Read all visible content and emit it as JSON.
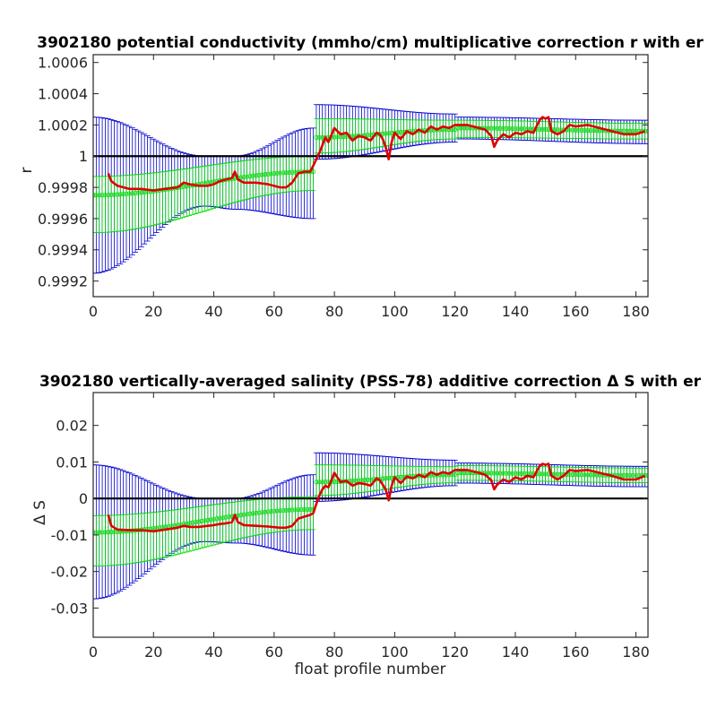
{
  "chart_data": [
    {
      "type": "line",
      "title": "3902180 potential conductivity (mmho/cm) multiplicative correction r with er",
      "xlabel": "",
      "ylabel": "r",
      "xlim": [
        0,
        184
      ],
      "ylim": [
        0.9991,
        1.00065
      ],
      "xticks": [
        0,
        20,
        40,
        60,
        80,
        100,
        120,
        140,
        160,
        180
      ],
      "xtick_labels": [
        "0",
        "20",
        "40",
        "60",
        "80",
        "100",
        "120",
        "140",
        "160",
        "180"
      ],
      "yticks": [
        0.9992,
        0.9994,
        0.9996,
        0.9998,
        1.0,
        1.0002,
        1.0004,
        1.0006
      ],
      "ytick_labels": [
        "0.9992",
        "0.9994",
        "0.9996",
        "0.9998",
        "1",
        "1.0002",
        "1.0004",
        "1.0006"
      ],
      "reference_line": 1.0,
      "series": [
        {
          "role": "fit-with-error",
          "color": "#0000cc",
          "segments": [
            {
              "x_range": [
                0,
                73
              ],
              "center": [
                [
                  0,
                  0.99975
                ],
                [
                  37,
                  0.99998
                ],
                [
                  47,
                  0.99998
                ],
                [
                  73,
                  0.9999
                ]
              ],
              "upper": [
                [
                  0,
                  1.00025
                ],
                [
                  37,
                  1.0
                ],
                [
                  47,
                  1.0
                ],
                [
                  73,
                  1.00018
                ]
              ],
              "lower": [
                [
                  0,
                  0.99925
                ],
                [
                  37,
                  0.99968
                ],
                [
                  47,
                  0.99966
                ],
                [
                  73,
                  0.9996
                ]
              ]
            },
            {
              "x_range": [
                74,
                120
              ],
              "center": [
                [
                  74,
                  1.0001
                ],
                [
                  120,
                  1.00017
                ]
              ],
              "upper": [
                [
                  74,
                  1.00033
                ],
                [
                  120,
                  1.00027
                ]
              ],
              "lower": [
                [
                  74,
                  0.99998
                ],
                [
                  120,
                  1.00009
                ]
              ]
            },
            {
              "x_range": [
                121,
                184
              ],
              "center": [
                [
                  121,
                  1.00018
                ],
                [
                  184,
                  1.00015
                ]
              ],
              "upper": [
                [
                  121,
                  1.00025
                ],
                [
                  184,
                  1.00023
                ]
              ],
              "lower": [
                [
                  121,
                  1.00011
                ],
                [
                  184,
                  1.00008
                ]
              ]
            }
          ]
        },
        {
          "role": "green-error-band",
          "color": "#00dd00",
          "segments": [
            {
              "x_range": [
                0,
                73
              ],
              "center": [
                [
                  0,
                  0.99975
                ],
                [
                  73,
                  0.9999
                ]
              ],
              "upper": [
                [
                  0,
                  0.99987
                ],
                [
                  73,
                  1.0
                ]
              ],
              "lower": [
                [
                  0,
                  0.99951
                ],
                [
                  73,
                  0.99978
                ]
              ]
            },
            {
              "x_range": [
                74,
                120
              ],
              "center": [
                [
                  74,
                  1.00012
                ],
                [
                  120,
                  1.00017
                ]
              ],
              "upper": [
                [
                  74,
                  1.00024
                ],
                [
                  120,
                  1.00023
                ]
              ],
              "lower": [
                [
                  74,
                  1.00002
                ],
                [
                  120,
                  1.00011
                ]
              ]
            },
            {
              "x_range": [
                121,
                184
              ],
              "center": [
                [
                  121,
                  1.00018
                ],
                [
                  184,
                  1.00016
                ]
              ],
              "upper": [
                [
                  121,
                  1.00023
                ],
                [
                  184,
                  1.00021
                ]
              ],
              "lower": [
                [
                  121,
                  1.00012
                ],
                [
                  184,
                  1.00011
                ]
              ]
            }
          ]
        },
        {
          "role": "profile-correction",
          "color": "#dd0000",
          "x": [
            5,
            6,
            8,
            12,
            16,
            20,
            24,
            28,
            30,
            32,
            35,
            38,
            40,
            42,
            44,
            46,
            47,
            48,
            50,
            54,
            58,
            62,
            64,
            66,
            68,
            70,
            72,
            73,
            74,
            75,
            76,
            77,
            78,
            80,
            82,
            84,
            86,
            88,
            90,
            92,
            94,
            95,
            96,
            97,
            98,
            99,
            100,
            102,
            104,
            106,
            108,
            110,
            112,
            114,
            116,
            118,
            120,
            124,
            128,
            130,
            132,
            133,
            134,
            136,
            138,
            140,
            142,
            144,
            146,
            148,
            149,
            150,
            151,
            152,
            154,
            156,
            158,
            160,
            164,
            168,
            172,
            176,
            180,
            183
          ],
          "y": [
            0.99989,
            0.99984,
            0.99981,
            0.99979,
            0.99979,
            0.99978,
            0.99979,
            0.9998,
            0.99983,
            0.99982,
            0.99981,
            0.99981,
            0.99982,
            0.99984,
            0.99985,
            0.99986,
            0.9999,
            0.99985,
            0.99983,
            0.99983,
            0.99982,
            0.9998,
            0.9998,
            0.99983,
            0.99989,
            0.9999,
            0.9999,
            0.99994,
            0.99998,
            1.00002,
            1.00007,
            1.00012,
            1.00009,
            1.00018,
            1.00014,
            1.00015,
            1.0001,
            1.00013,
            1.00012,
            1.0001,
            1.00015,
            1.00014,
            1.00011,
            1.00006,
            0.99998,
            1.00009,
            1.00015,
            1.00011,
            1.00016,
            1.00014,
            1.00017,
            1.00015,
            1.00019,
            1.00017,
            1.00019,
            1.00018,
            1.0002,
            1.0002,
            1.00018,
            1.00017,
            1.00013,
            1.00006,
            1.0001,
            1.00014,
            1.00012,
            1.00015,
            1.00014,
            1.00016,
            1.00015,
            1.00023,
            1.00025,
            1.00024,
            1.00025,
            1.00016,
            1.00014,
            1.00016,
            1.0002,
            1.00019,
            1.0002,
            1.00018,
            1.00016,
            1.00014,
            1.00014,
            1.00016
          ]
        }
      ]
    },
    {
      "type": "line",
      "title": "3902180 vertically-averaged salinity (PSS-78) additive correction Δ S with er",
      "xlabel": "float profile number",
      "ylabel": "Δ S",
      "xlim": [
        0,
        184
      ],
      "ylim": [
        -0.038,
        0.029
      ],
      "xticks": [
        0,
        20,
        40,
        60,
        80,
        100,
        120,
        140,
        160,
        180
      ],
      "xtick_labels": [
        "0",
        "20",
        "40",
        "60",
        "80",
        "100",
        "120",
        "140",
        "160",
        "180"
      ],
      "yticks": [
        -0.03,
        -0.02,
        -0.01,
        0,
        0.01,
        0.02
      ],
      "ytick_labels": [
        "-0.03",
        "-0.02",
        "-0.01",
        "0",
        "0.01",
        "0.02"
      ],
      "reference_line": 0,
      "series": [
        {
          "role": "fit-with-error",
          "color": "#0000cc",
          "segments": [
            {
              "x_range": [
                0,
                73
              ],
              "center": [
                [
                  0,
                  -0.0093
                ],
                [
                  37,
                  -0.0005
                ],
                [
                  47,
                  -0.0005
                ],
                [
                  73,
                  -0.003
                ]
              ],
              "upper": [
                [
                  0,
                  0.0092
                ],
                [
                  37,
                  0.0
                ],
                [
                  47,
                  0.0
                ],
                [
                  73,
                  0.0065
                ]
              ],
              "lower": [
                [
                  0,
                  -0.0275
                ],
                [
                  37,
                  -0.0118
                ],
                [
                  47,
                  -0.0122
                ],
                [
                  73,
                  -0.0155
                ]
              ]
            },
            {
              "x_range": [
                74,
                120
              ],
              "center": [
                [
                  74,
                  0.0037
                ],
                [
                  120,
                  0.0065
                ]
              ],
              "upper": [
                [
                  74,
                  0.0125
                ],
                [
                  120,
                  0.0105
                ]
              ],
              "lower": [
                [
                  74,
                  -0.0008
                ],
                [
                  120,
                  0.0035
                ]
              ]
            },
            {
              "x_range": [
                121,
                184
              ],
              "center": [
                [
                  121,
                  0.007
                ],
                [
                  184,
                  0.006
                ]
              ],
              "upper": [
                [
                  121,
                  0.0097
                ],
                [
                  184,
                  0.0088
                ]
              ],
              "lower": [
                [
                  121,
                  0.0042
                ],
                [
                  184,
                  0.0032
                ]
              ]
            }
          ]
        },
        {
          "role": "green-error-band",
          "color": "#00dd00",
          "segments": [
            {
              "x_range": [
                0,
                73
              ],
              "center": [
                [
                  0,
                  -0.0093
                ],
                [
                  73,
                  -0.003
                ]
              ],
              "upper": [
                [
                  0,
                  -0.0047
                ],
                [
                  73,
                  0.0005
                ]
              ],
              "lower": [
                [
                  0,
                  -0.0185
                ],
                [
                  73,
                  -0.0085
                ]
              ]
            },
            {
              "x_range": [
                74,
                120
              ],
              "center": [
                [
                  74,
                  0.0045
                ],
                [
                  120,
                  0.0065
                ]
              ],
              "upper": [
                [
                  74,
                  0.0092
                ],
                [
                  120,
                  0.0087
                ]
              ],
              "lower": [
                [
                  74,
                  0.0008
                ],
                [
                  120,
                  0.0043
                ]
              ]
            },
            {
              "x_range": [
                121,
                184
              ],
              "center": [
                [
                  121,
                  0.007
                ],
                [
                  184,
                  0.0063
                ]
              ],
              "upper": [
                [
                  121,
                  0.009
                ],
                [
                  184,
                  0.0083
                ]
              ],
              "lower": [
                [
                  121,
                  0.005
                ],
                [
                  184,
                  0.0043
                ]
              ]
            }
          ]
        },
        {
          "role": "profile-correction",
          "color": "#dd0000",
          "x": [
            5,
            6,
            8,
            12,
            16,
            20,
            24,
            28,
            30,
            32,
            35,
            38,
            40,
            42,
            44,
            46,
            47,
            48,
            50,
            54,
            58,
            62,
            64,
            66,
            68,
            70,
            72,
            73,
            74,
            75,
            76,
            77,
            78,
            80,
            82,
            84,
            86,
            88,
            90,
            92,
            94,
            95,
            96,
            97,
            98,
            99,
            100,
            102,
            104,
            106,
            108,
            110,
            112,
            114,
            116,
            118,
            120,
            124,
            128,
            130,
            132,
            133,
            134,
            136,
            138,
            140,
            142,
            144,
            146,
            148,
            149,
            150,
            151,
            152,
            154,
            156,
            158,
            160,
            164,
            168,
            172,
            176,
            180,
            183
          ],
          "y": [
            -0.0045,
            -0.0075,
            -0.0085,
            -0.0087,
            -0.0087,
            -0.009,
            -0.0085,
            -0.008,
            -0.0075,
            -0.0078,
            -0.0078,
            -0.0075,
            -0.0073,
            -0.007,
            -0.0068,
            -0.0065,
            -0.0045,
            -0.0065,
            -0.0073,
            -0.0075,
            -0.0077,
            -0.008,
            -0.008,
            -0.0075,
            -0.0055,
            -0.005,
            -0.0045,
            -0.004,
            -0.0015,
            0.0008,
            0.0025,
            0.0035,
            0.003,
            0.007,
            0.0045,
            0.0048,
            0.0035,
            0.0042,
            0.004,
            0.0035,
            0.0055,
            0.005,
            0.0038,
            0.0025,
            -0.0005,
            0.0035,
            0.0058,
            0.0042,
            0.006,
            0.0055,
            0.0065,
            0.0058,
            0.0072,
            0.0065,
            0.0072,
            0.0068,
            0.0078,
            0.0078,
            0.007,
            0.0065,
            0.005,
            0.0025,
            0.0038,
            0.0052,
            0.0045,
            0.0058,
            0.0052,
            0.0062,
            0.0058,
            0.0088,
            0.0095,
            0.0092,
            0.0095,
            0.0062,
            0.0052,
            0.0062,
            0.0078,
            0.0075,
            0.0078,
            0.007,
            0.0062,
            0.0052,
            0.0052,
            0.0062
          ]
        }
      ]
    }
  ]
}
